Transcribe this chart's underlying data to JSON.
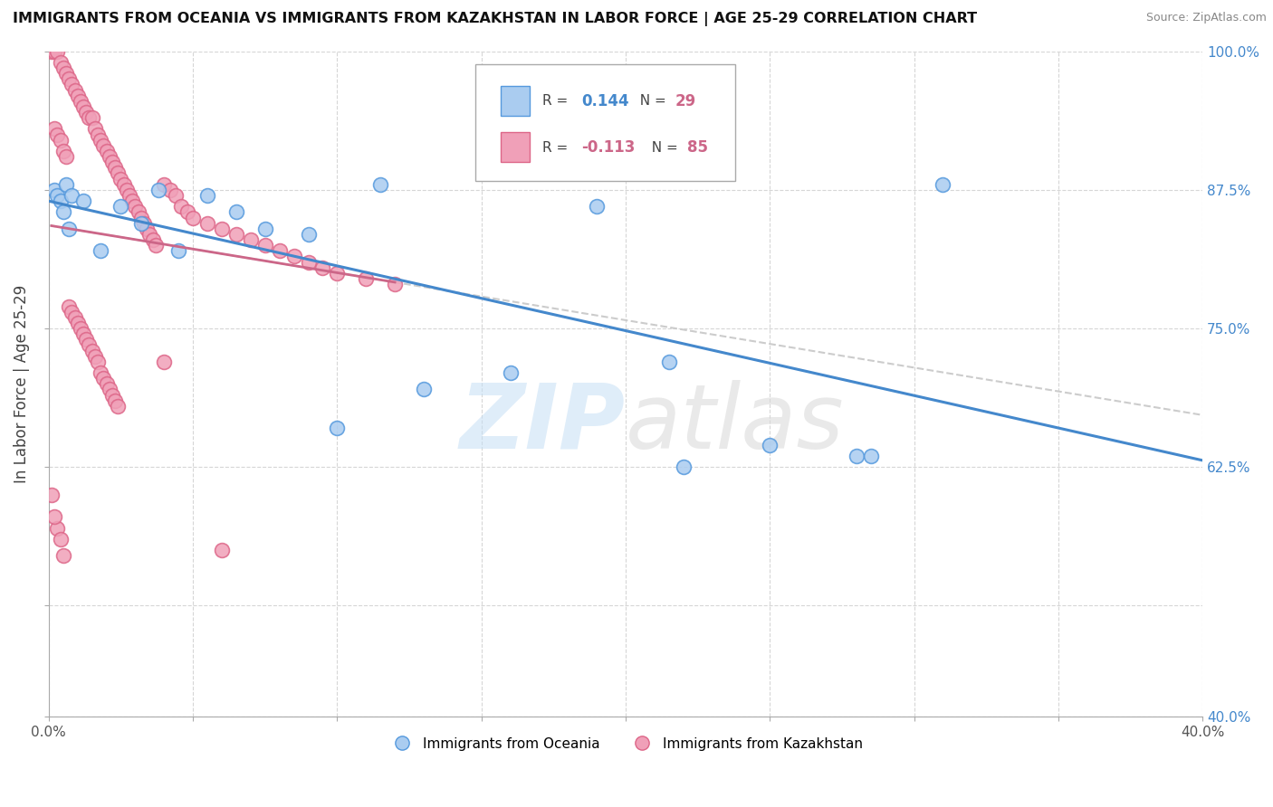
{
  "title": "IMMIGRANTS FROM OCEANIA VS IMMIGRANTS FROM KAZAKHSTAN IN LABOR FORCE | AGE 25-29 CORRELATION CHART",
  "source": "Source: ZipAtlas.com",
  "ylabel": "In Labor Force | Age 25-29",
  "xlim": [
    0.0,
    0.4
  ],
  "ylim": [
    0.4,
    1.0
  ],
  "watermark_zip": "ZIP",
  "watermark_atlas": "atlas",
  "blue_color": "#aaccf0",
  "pink_color": "#f0a0b8",
  "blue_edge_color": "#5599dd",
  "pink_edge_color": "#dd6688",
  "blue_line_color": "#4488cc",
  "pink_line_color": "#cc6688",
  "oceania_x": [
    0.002,
    0.003,
    0.004,
    0.005,
    0.006,
    0.007,
    0.008,
    0.012,
    0.018,
    0.025,
    0.032,
    0.038,
    0.045,
    0.055,
    0.065,
    0.075,
    0.09,
    0.1,
    0.115,
    0.13,
    0.16,
    0.19,
    0.22,
    0.25,
    0.28,
    0.31,
    0.175,
    0.215,
    0.285
  ],
  "oceania_y": [
    0.875,
    0.87,
    0.865,
    0.855,
    0.88,
    0.84,
    0.87,
    0.865,
    0.82,
    0.86,
    0.845,
    0.875,
    0.82,
    0.87,
    0.855,
    0.84,
    0.835,
    0.66,
    0.88,
    0.695,
    0.71,
    0.86,
    0.625,
    0.645,
    0.635,
    0.88,
    0.89,
    0.72,
    0.635
  ],
  "kazakhstan_x": [
    0.001,
    0.002,
    0.003,
    0.004,
    0.005,
    0.006,
    0.007,
    0.008,
    0.009,
    0.01,
    0.011,
    0.012,
    0.013,
    0.014,
    0.015,
    0.016,
    0.017,
    0.018,
    0.019,
    0.02,
    0.021,
    0.022,
    0.023,
    0.024,
    0.025,
    0.026,
    0.027,
    0.028,
    0.029,
    0.03,
    0.031,
    0.032,
    0.033,
    0.034,
    0.035,
    0.036,
    0.037,
    0.04,
    0.042,
    0.044,
    0.046,
    0.048,
    0.05,
    0.055,
    0.06,
    0.065,
    0.07,
    0.075,
    0.08,
    0.085,
    0.09,
    0.095,
    0.1,
    0.11,
    0.12,
    0.002,
    0.003,
    0.004,
    0.005,
    0.006,
    0.007,
    0.008,
    0.009,
    0.01,
    0.011,
    0.012,
    0.013,
    0.014,
    0.015,
    0.016,
    0.017,
    0.018,
    0.019,
    0.02,
    0.021,
    0.022,
    0.023,
    0.024,
    0.003,
    0.004,
    0.005,
    0.04,
    0.06,
    0.001,
    0.002
  ],
  "kazakhstan_y": [
    1.0,
    1.0,
    1.0,
    0.99,
    0.985,
    0.98,
    0.975,
    0.97,
    0.965,
    0.96,
    0.955,
    0.95,
    0.945,
    0.94,
    0.94,
    0.93,
    0.925,
    0.92,
    0.915,
    0.91,
    0.905,
    0.9,
    0.895,
    0.89,
    0.885,
    0.88,
    0.875,
    0.87,
    0.865,
    0.86,
    0.855,
    0.85,
    0.845,
    0.84,
    0.835,
    0.83,
    0.825,
    0.88,
    0.875,
    0.87,
    0.86,
    0.855,
    0.85,
    0.845,
    0.84,
    0.835,
    0.83,
    0.825,
    0.82,
    0.815,
    0.81,
    0.805,
    0.8,
    0.795,
    0.79,
    0.93,
    0.925,
    0.92,
    0.91,
    0.905,
    0.77,
    0.765,
    0.76,
    0.755,
    0.75,
    0.745,
    0.74,
    0.735,
    0.73,
    0.725,
    0.72,
    0.71,
    0.705,
    0.7,
    0.695,
    0.69,
    0.685,
    0.68,
    0.57,
    0.56,
    0.545,
    0.72,
    0.55,
    0.6,
    0.58
  ]
}
